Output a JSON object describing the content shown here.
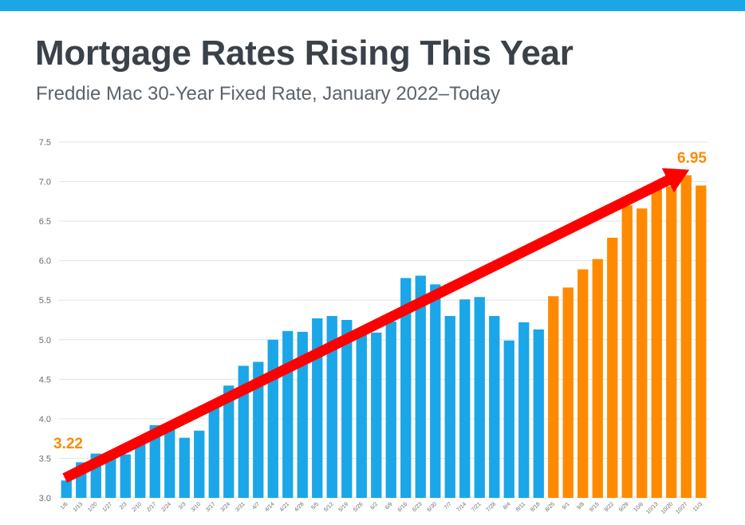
{
  "header": {
    "title": "Mortgage Rates Rising This Year",
    "subtitle": "Freddie Mac 30-Year Fixed Rate, January 2022–Today"
  },
  "colors": {
    "band": "#1ba6e8",
    "bar_blue": "#1ba6e8",
    "bar_orange": "#ff8a00",
    "arrow": "#ff0000",
    "callout": "#ff8a00",
    "grid": "#e4e4e4",
    "tick_text": "#6b6b6b"
  },
  "chart_data": {
    "type": "bar",
    "title": "Mortgage Rates Rising This Year",
    "subtitle": "Freddie Mac 30-Year Fixed Rate, January 2022–Today",
    "categories": [
      "1/6",
      "1/13",
      "1/20",
      "1/27",
      "2/3",
      "2/10",
      "2/17",
      "2/24",
      "3/3",
      "3/10",
      "3/17",
      "3/24",
      "3/31",
      "4/7",
      "4/14",
      "4/21",
      "4/28",
      "5/5",
      "5/12",
      "5/19",
      "5/26",
      "6/2",
      "6/9",
      "6/16",
      "6/23",
      "6/30",
      "7/7",
      "7/14",
      "7/21",
      "7/28",
      "8/4",
      "8/11",
      "8/18",
      "8/25",
      "9/1",
      "9/8",
      "9/15",
      "9/22",
      "9/29",
      "10/6",
      "10/13",
      "10/20",
      "10/27",
      "11/3"
    ],
    "series": [
      {
        "values": [
          3.22,
          3.45,
          3.56,
          3.55,
          3.55,
          3.69,
          3.92,
          3.89,
          3.76,
          3.85,
          4.16,
          4.42,
          4.67,
          4.72,
          5.0,
          5.11,
          5.1,
          5.27,
          5.3,
          5.25,
          5.1,
          5.09,
          5.23,
          5.78,
          5.81,
          5.7,
          5.3,
          5.51,
          5.54,
          5.3,
          4.99,
          5.22,
          5.13,
          5.55,
          5.66,
          5.89,
          6.02,
          6.29,
          6.7,
          6.66,
          6.92,
          6.94,
          7.08,
          6.95
        ],
        "highlight_from_index": 33
      }
    ],
    "ylim": [
      3.0,
      7.5
    ],
    "yticks": [
      "3.0",
      "3.5",
      "4.0",
      "4.5",
      "5.0",
      "5.5",
      "6.0",
      "6.5",
      "7.0",
      "7.5"
    ],
    "grid": true,
    "annotations": {
      "start_label": "3.22",
      "end_label": "6.95"
    },
    "trend_arrow": {
      "from_category": "1/6",
      "to_category": "10/27",
      "from_value": 3.25,
      "to_value": 7.15
    }
  }
}
